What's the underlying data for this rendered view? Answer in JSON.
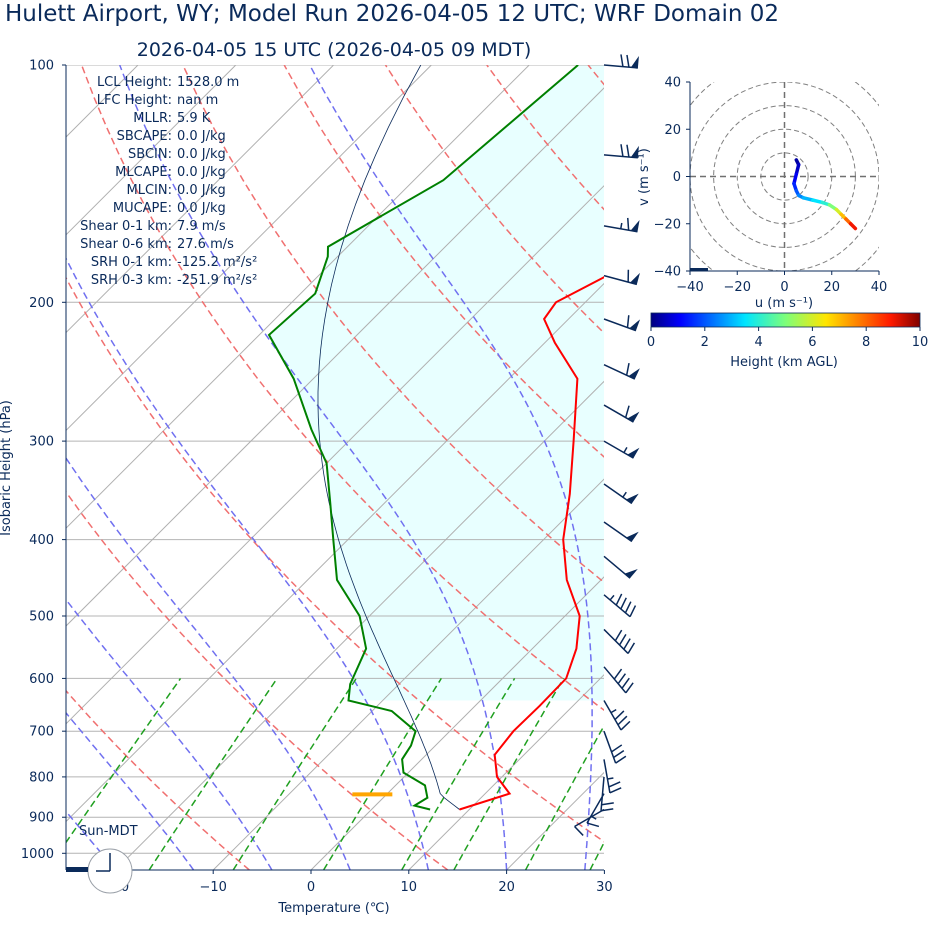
{
  "title": "Hulett Airport, WY; Model Run 2026-04-05 12 UTC; WRF Domain 02",
  "subtitle": "2026-04-05 15 UTC  (2026-04-05 09 MDT)",
  "sun_label": "Sun-MDT",
  "skewt": {
    "xlabel": "Temperature (℃)",
    "ylabel": "Isobaric Height (hPa)",
    "xlim": [
      -25,
      30
    ],
    "ylim": [
      1050,
      100
    ],
    "x_ticks": [
      "−20",
      "−10",
      "0",
      "10",
      "20",
      "30"
    ],
    "y_ticks": [
      "100",
      "200",
      "300",
      "400",
      "500",
      "600",
      "700",
      "800",
      "900",
      "1000"
    ],
    "colors": {
      "temperature": "#ff0000",
      "dewpoint": "#008000",
      "dry_adiabat": "#f07070",
      "moist_adiabat": "#7070f0",
      "mixing_ratio": "#20a020",
      "isotherm": "#b0b0b0",
      "cape_fill": "#e6ffff",
      "lcl_marker": "#ffa500"
    }
  },
  "stats": [
    {
      "label": "LCL Height:",
      "value": "1528.0 m"
    },
    {
      "label": "LFC Height:",
      "value": "nan m"
    },
    {
      "label": "MLLR:",
      "value": "5.9 K"
    },
    {
      "label": "SBCAPE:",
      "value": "0.0 J/kg"
    },
    {
      "label": "SBCIN:",
      "value": "0.0 J/kg"
    },
    {
      "label": "MLCAPE:",
      "value": "0.0 J/kg"
    },
    {
      "label": "MLCIN:",
      "value": "0.0 J/kg"
    },
    {
      "label": "MUCAPE:",
      "value": "0.0 J/kg"
    },
    {
      "label": "Shear 0-1 km:",
      "value": "7.9 m/s"
    },
    {
      "label": "Shear 0-6 km:",
      "value": "27.6 m/s"
    },
    {
      "label": "SRH 0-1 km:",
      "value": "-125.2 m²/s²"
    },
    {
      "label": "SRH 0-3 km:",
      "value": "-251.9 m²/s²"
    }
  ],
  "hodograph": {
    "xlabel": "u (m s⁻¹)",
    "ylabel": "v (m s⁻¹)",
    "xlim": [
      -40,
      40
    ],
    "ylim": [
      -40,
      40
    ],
    "x_ticks": [
      "−40",
      "−20",
      "0",
      "20",
      "40"
    ],
    "y_ticks": [
      "40",
      "20",
      "0",
      "−20",
      "−40"
    ]
  },
  "colorbar": {
    "label": "Height (km AGL)",
    "ticks": [
      "0",
      "2",
      "4",
      "6",
      "8",
      "10"
    ],
    "range": [
      0,
      10
    ]
  },
  "chart_data": {
    "type": "line",
    "title": "Hulett Airport, WY; Model Run 2026-04-05 12 UTC; WRF Domain 02",
    "subtitle": "2026-04-05 15 UTC  (2026-04-05 09 MDT)",
    "xlabel": "Temperature (℃)",
    "ylabel": "Isobaric Height (hPa)",
    "xlim": [
      -25,
      30
    ],
    "ylim": [
      1050,
      100
    ],
    "log_y": true,
    "skew": true,
    "lcl_pressure_hpa": 842,
    "series": [
      {
        "name": "temperature",
        "points": [
          [
            9.0,
            880
          ],
          [
            12.5,
            840
          ],
          [
            9.5,
            800
          ],
          [
            7.0,
            750
          ],
          [
            6.5,
            700
          ],
          [
            6.6,
            650
          ],
          [
            6.5,
            600
          ],
          [
            4.5,
            550
          ],
          [
            1.5,
            500
          ],
          [
            -3.5,
            450
          ],
          [
            -8.0,
            400
          ],
          [
            -12.0,
            350
          ],
          [
            -17.0,
            300
          ],
          [
            -23.0,
            250
          ],
          [
            -29.0,
            225
          ],
          [
            -32.5,
            210
          ],
          [
            -33.0,
            200
          ],
          [
            -30.5,
            185
          ],
          [
            -31.0,
            160
          ],
          [
            -31.0,
            140
          ],
          [
            -35.0,
            100
          ]
        ]
      },
      {
        "name": "dewpoint",
        "points": [
          [
            6.0,
            880
          ],
          [
            4.0,
            870
          ],
          [
            4.5,
            850
          ],
          [
            3.0,
            820
          ],
          [
            -0.5,
            790
          ],
          [
            -2.0,
            760
          ],
          [
            -2.5,
            730
          ],
          [
            -3.5,
            700
          ],
          [
            -8.0,
            660
          ],
          [
            -13.5,
            640
          ],
          [
            -15.0,
            610
          ],
          [
            -17.0,
            550
          ],
          [
            -21.0,
            500
          ],
          [
            -27.0,
            450
          ],
          [
            -31.5,
            400
          ],
          [
            -35.5,
            360
          ],
          [
            -40.0,
            320
          ],
          [
            -45.0,
            290
          ],
          [
            -52.0,
            250
          ],
          [
            -59.0,
            220
          ],
          [
            -58.5,
            195
          ],
          [
            -61.0,
            175
          ],
          [
            -62.0,
            170
          ],
          [
            -57.0,
            140
          ],
          [
            -55.0,
            100
          ]
        ]
      }
    ],
    "wind_barbs": [
      {
        "p": 100,
        "speed_kt": 70,
        "dir_deg": 275
      },
      {
        "p": 130,
        "speed_kt": 70,
        "dir_deg": 275
      },
      {
        "p": 160,
        "speed_kt": 65,
        "dir_deg": 280
      },
      {
        "p": 185,
        "speed_kt": 60,
        "dir_deg": 285
      },
      {
        "p": 210,
        "speed_kt": 60,
        "dir_deg": 290
      },
      {
        "p": 240,
        "speed_kt": 60,
        "dir_deg": 295
      },
      {
        "p": 270,
        "speed_kt": 60,
        "dir_deg": 300
      },
      {
        "p": 300,
        "speed_kt": 55,
        "dir_deg": 300
      },
      {
        "p": 340,
        "speed_kt": 55,
        "dir_deg": 305
      },
      {
        "p": 380,
        "speed_kt": 50,
        "dir_deg": 305
      },
      {
        "p": 420,
        "speed_kt": 50,
        "dir_deg": 310
      },
      {
        "p": 470,
        "speed_kt": 45,
        "dir_deg": 310
      },
      {
        "p": 520,
        "speed_kt": 40,
        "dir_deg": 315
      },
      {
        "p": 580,
        "speed_kt": 40,
        "dir_deg": 320
      },
      {
        "p": 640,
        "speed_kt": 35,
        "dir_deg": 330
      },
      {
        "p": 700,
        "speed_kt": 30,
        "dir_deg": 340
      },
      {
        "p": 760,
        "speed_kt": 25,
        "dir_deg": 350
      },
      {
        "p": 800,
        "speed_kt": 20,
        "dir_deg": 5
      },
      {
        "p": 840,
        "speed_kt": 15,
        "dir_deg": 30
      },
      {
        "p": 880,
        "speed_kt": 10,
        "dir_deg": 60
      }
    ],
    "hodograph": {
      "u": [
        5,
        6,
        5,
        4,
        5,
        6,
        8,
        12,
        16,
        19,
        22,
        24,
        26,
        28,
        30
      ],
      "v": [
        7,
        5,
        1,
        -3,
        -6,
        -8,
        -9,
        -10,
        -11,
        -12,
        -14,
        -16,
        -18,
        -20,
        -22
      ],
      "height_km": [
        0.1,
        0.3,
        0.6,
        1.0,
        1.5,
        2.0,
        2.5,
        3.0,
        3.5,
        4.0,
        5.0,
        6.0,
        7.0,
        8.0,
        9.0
      ]
    }
  }
}
